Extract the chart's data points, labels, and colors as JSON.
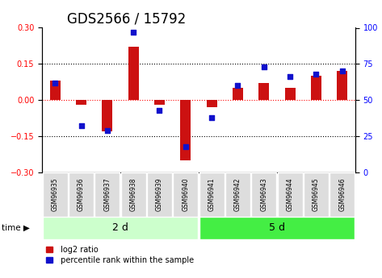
{
  "title": "GDS2566 / 15792",
  "samples": [
    "GSM96935",
    "GSM96936",
    "GSM96937",
    "GSM96938",
    "GSM96939",
    "GSM96940",
    "GSM96941",
    "GSM96942",
    "GSM96943",
    "GSM96944",
    "GSM96945",
    "GSM96946"
  ],
  "log2_ratio": [
    0.08,
    -0.02,
    -0.13,
    0.22,
    -0.02,
    -0.25,
    -0.03,
    0.05,
    0.07,
    0.05,
    0.1,
    0.12
  ],
  "percentile_rank": [
    62,
    32,
    29,
    97,
    43,
    18,
    38,
    60,
    73,
    66,
    68,
    70
  ],
  "group1_label": "2 d",
  "group2_label": "5 d",
  "group1_count": 6,
  "group2_count": 6,
  "ylim_left": [
    -0.3,
    0.3
  ],
  "ylim_right": [
    0,
    100
  ],
  "yticks_left": [
    -0.3,
    -0.15,
    0.0,
    0.15,
    0.3
  ],
  "yticks_right": [
    0,
    25,
    50,
    75,
    100
  ],
  "hlines": [
    -0.15,
    0.0,
    0.15
  ],
  "bar_color": "#cc1111",
  "dot_color": "#1111cc",
  "group1_bg": "#ccffcc",
  "group2_bg": "#44ee44",
  "sample_bg": "#dddddd",
  "title_fontsize": 12,
  "tick_fontsize": 7,
  "label_fontsize": 8
}
